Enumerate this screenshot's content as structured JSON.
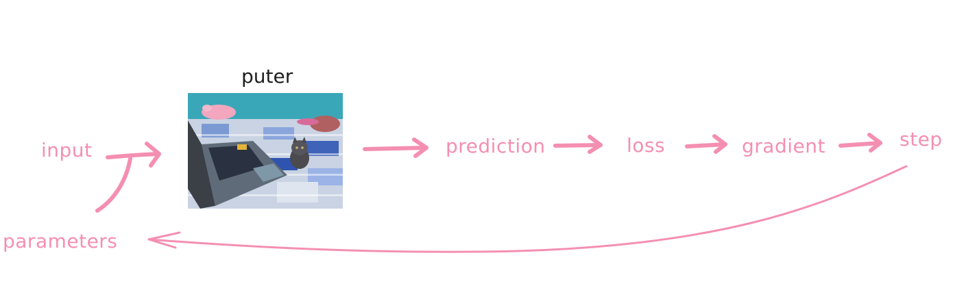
{
  "diagram": {
    "title": "puter",
    "photo_subject": "kitten-beside-laptop-on-bed",
    "nodes": {
      "input": "input",
      "prediction": "prediction",
      "loss": "loss",
      "gradient": "gradient",
      "step": "step",
      "parameters": "parameters"
    },
    "colors": {
      "accent": "#f48fb1",
      "title": "#1e1e1e"
    }
  }
}
